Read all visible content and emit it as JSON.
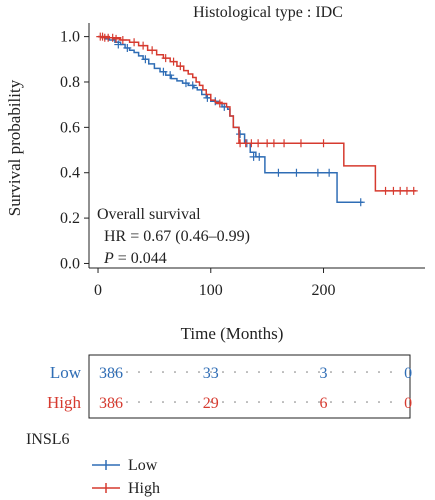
{
  "chart_data": {
    "type": "line",
    "subtype": "kaplan-meier",
    "title": "Histological type : IDC",
    "xlabel": "Time (Months)",
    "ylabel": "Survival probability",
    "xlim": [
      -8,
      290
    ],
    "ylim": [
      -0.02,
      1.06
    ],
    "xticks": [
      0,
      100,
      200
    ],
    "yticks": [
      0.0,
      0.2,
      0.4,
      0.6,
      0.8,
      1.0
    ],
    "ytick_labels": [
      "0.0",
      "0.2",
      "0.4",
      "0.6",
      "0.8",
      "1.0"
    ],
    "annotation": {
      "line1": "Overall survival",
      "line2": "HR = 0.67 (0.46–0.99)",
      "p_label": "P",
      "p_value": " = 0.044"
    },
    "legend": {
      "title": "INSL6",
      "placement": "bottom-left"
    },
    "series": [
      {
        "name": "Low",
        "color": "#2f6db5",
        "steps": [
          [
            0,
            1.0
          ],
          [
            6,
            0.99
          ],
          [
            10,
            0.985
          ],
          [
            15,
            0.975
          ],
          [
            20,
            0.965
          ],
          [
            24,
            0.95
          ],
          [
            28,
            0.94
          ],
          [
            32,
            0.93
          ],
          [
            36,
            0.915
          ],
          [
            40,
            0.9
          ],
          [
            45,
            0.88
          ],
          [
            50,
            0.86
          ],
          [
            55,
            0.845
          ],
          [
            60,
            0.83
          ],
          [
            65,
            0.815
          ],
          [
            70,
            0.805
          ],
          [
            75,
            0.795
          ],
          [
            80,
            0.785
          ],
          [
            85,
            0.775
          ],
          [
            88,
            0.765
          ],
          [
            92,
            0.745
          ],
          [
            96,
            0.73
          ],
          [
            100,
            0.715
          ],
          [
            105,
            0.705
          ],
          [
            110,
            0.69
          ],
          [
            115,
            0.68
          ],
          [
            117,
            0.65
          ],
          [
            120,
            0.6
          ],
          [
            125,
            0.57
          ],
          [
            130,
            0.53
          ],
          [
            135,
            0.49
          ],
          [
            140,
            0.47
          ],
          [
            148,
            0.4
          ],
          [
            212,
            0.27
          ],
          [
            235,
            0.27
          ]
        ],
        "censors": [
          [
            18,
            0.965
          ],
          [
            26,
            0.95
          ],
          [
            42,
            0.9
          ],
          [
            58,
            0.845
          ],
          [
            64,
            0.83
          ],
          [
            78,
            0.795
          ],
          [
            84,
            0.785
          ],
          [
            97,
            0.73
          ],
          [
            104,
            0.715
          ],
          [
            112,
            0.69
          ],
          [
            126,
            0.57
          ],
          [
            132,
            0.53
          ],
          [
            138,
            0.47
          ],
          [
            143,
            0.47
          ],
          [
            160,
            0.4
          ],
          [
            176,
            0.4
          ],
          [
            195,
            0.4
          ],
          [
            205,
            0.4
          ],
          [
            233,
            0.27
          ]
        ],
        "risk": [
          386,
          33,
          3,
          0
        ]
      },
      {
        "name": "High",
        "color": "#d63a2f",
        "steps": [
          [
            0,
            1.0
          ],
          [
            10,
            0.995
          ],
          [
            20,
            0.985
          ],
          [
            28,
            0.975
          ],
          [
            36,
            0.96
          ],
          [
            44,
            0.94
          ],
          [
            52,
            0.92
          ],
          [
            58,
            0.905
          ],
          [
            64,
            0.89
          ],
          [
            70,
            0.87
          ],
          [
            76,
            0.85
          ],
          [
            80,
            0.835
          ],
          [
            84,
            0.82
          ],
          [
            87,
            0.8
          ],
          [
            90,
            0.785
          ],
          [
            93,
            0.765
          ],
          [
            96,
            0.745
          ],
          [
            100,
            0.72
          ],
          [
            104,
            0.71
          ],
          [
            110,
            0.705
          ],
          [
            114,
            0.69
          ],
          [
            117,
            0.65
          ],
          [
            120,
            0.6
          ],
          [
            125,
            0.53
          ],
          [
            218,
            0.43
          ],
          [
            246,
            0.32
          ],
          [
            282,
            0.32
          ]
        ],
        "censors": [
          [
            2,
            1.0
          ],
          [
            4,
            1.0
          ],
          [
            6,
            0.995
          ],
          [
            9,
            0.995
          ],
          [
            13,
            0.995
          ],
          [
            16,
            0.99
          ],
          [
            22,
            0.985
          ],
          [
            32,
            0.975
          ],
          [
            40,
            0.96
          ],
          [
            48,
            0.94
          ],
          [
            60,
            0.905
          ],
          [
            67,
            0.89
          ],
          [
            73,
            0.87
          ],
          [
            108,
            0.705
          ],
          [
            126,
            0.53
          ],
          [
            131,
            0.53
          ],
          [
            136,
            0.53
          ],
          [
            142,
            0.53
          ],
          [
            150,
            0.53
          ],
          [
            156,
            0.53
          ],
          [
            165,
            0.53
          ],
          [
            180,
            0.53
          ],
          [
            200,
            0.53
          ],
          [
            255,
            0.32
          ],
          [
            262,
            0.32
          ],
          [
            268,
            0.32
          ],
          [
            274,
            0.32
          ],
          [
            280,
            0.32
          ]
        ],
        "risk": [
          386,
          29,
          6,
          0
        ]
      }
    ],
    "risk_table_times": [
      0,
      100,
      200,
      275
    ],
    "risk_table_rows": [
      "Low",
      "High"
    ]
  }
}
